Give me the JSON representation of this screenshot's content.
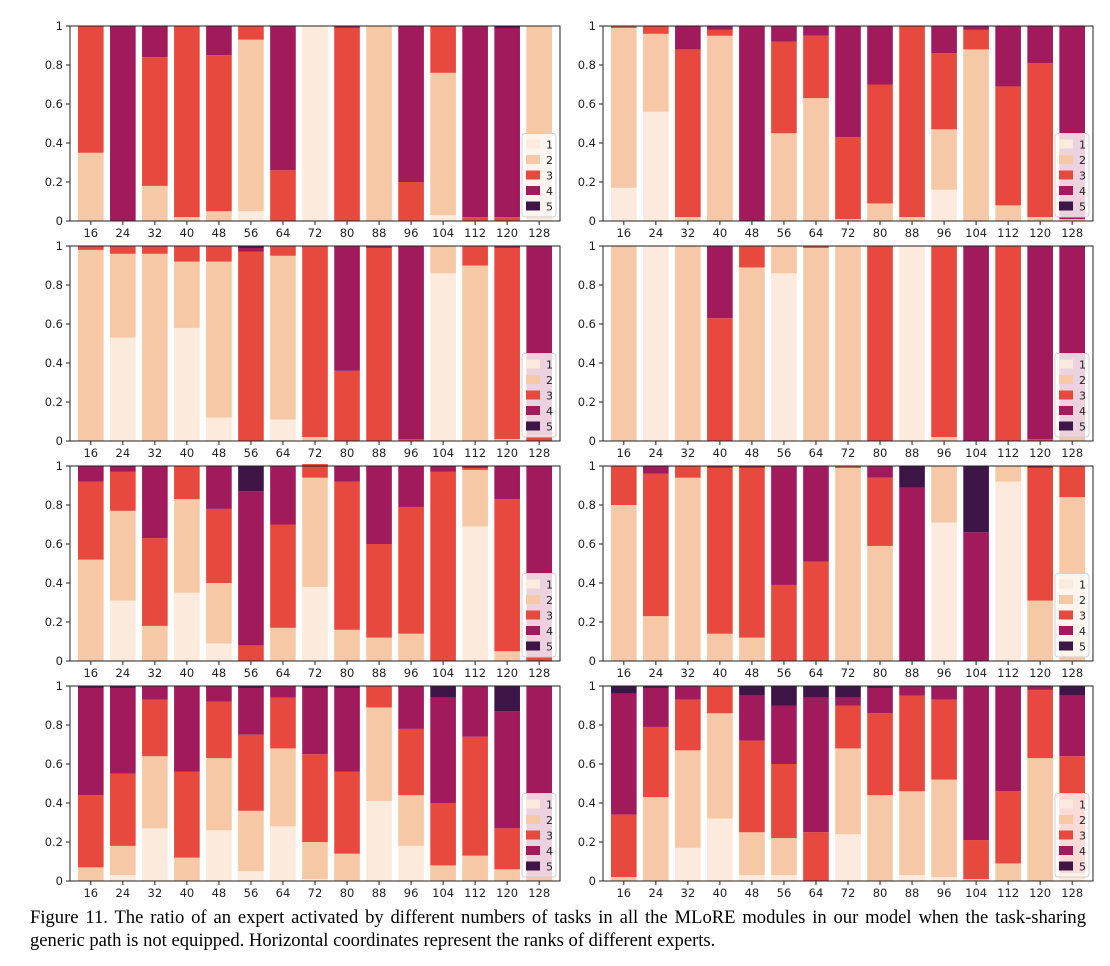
{
  "caption": "Figure 11. The ratio of an expert activated by different numbers of tasks in all the MLoRE modules in our model when the task-sharing generic path is not equipped. Horizontal coordinates represent the ranks of different experts.",
  "colors": {
    "1": "#fcebdc",
    "2": "#f6c8a6",
    "3": "#e8493e",
    "4": "#a11a5b",
    "5": "#3e1547"
  },
  "chart_data": [
    {
      "type": "bar",
      "stacked": true,
      "categories": [
        "16",
        "24",
        "32",
        "40",
        "48",
        "56",
        "64",
        "72",
        "80",
        "88",
        "96",
        "104",
        "112",
        "120",
        "128"
      ],
      "ylim": [
        0,
        1
      ],
      "yticks": [
        "0",
        "0.2",
        "0.4",
        "0.6",
        "0.8",
        "1"
      ],
      "legend": [
        "1",
        "2",
        "3",
        "4",
        "5"
      ],
      "legend_position": "lower-right",
      "series": [
        {
          "name": "1",
          "values": [
            0,
            0,
            0,
            0,
            0,
            0.05,
            0,
            1.0,
            0,
            0,
            0,
            0.03,
            0,
            0,
            0.02
          ]
        },
        {
          "name": "2",
          "values": [
            0.35,
            0,
            0.18,
            0.02,
            0.05,
            0.88,
            0,
            0,
            0,
            1.0,
            0,
            0.73,
            0,
            0,
            0.98
          ]
        },
        {
          "name": "3",
          "values": [
            0.65,
            0,
            0.66,
            0.98,
            0.8,
            0.07,
            0.26,
            0,
            0.99,
            0,
            0.2,
            0.24,
            0.02,
            0.02,
            0
          ]
        },
        {
          "name": "4",
          "values": [
            0,
            1.0,
            0.16,
            0,
            0.15,
            0,
            0.74,
            0,
            0.01,
            0,
            0.8,
            0,
            0.98,
            0.97,
            0
          ]
        },
        {
          "name": "5",
          "values": [
            0,
            0,
            0,
            0,
            0,
            0,
            0,
            0,
            0,
            0,
            0,
            0,
            0,
            0.01,
            0
          ]
        }
      ]
    },
    {
      "type": "bar",
      "stacked": true,
      "categories": [
        "16",
        "24",
        "32",
        "40",
        "48",
        "56",
        "64",
        "72",
        "80",
        "88",
        "96",
        "104",
        "112",
        "120",
        "128"
      ],
      "ylim": [
        0,
        1
      ],
      "yticks": [
        "0",
        "0.2",
        "0.4",
        "0.6",
        "0.8",
        "1"
      ],
      "legend": [
        "1",
        "2",
        "3",
        "4",
        "5"
      ],
      "legend_position": "lower-right",
      "series": [
        {
          "name": "1",
          "values": [
            0.17,
            0.56,
            0,
            0,
            0,
            0,
            0,
            0,
            0,
            0,
            0.16,
            0,
            0,
            0,
            0
          ]
        },
        {
          "name": "2",
          "values": [
            0.82,
            0.4,
            0.02,
            0.95,
            0,
            0.45,
            0.63,
            0.01,
            0.09,
            0.02,
            0.31,
            0.88,
            0.08,
            0.02,
            0.01
          ]
        },
        {
          "name": "3",
          "values": [
            0.01,
            0.04,
            0.86,
            0.03,
            0,
            0.47,
            0.32,
            0.42,
            0.61,
            0.98,
            0.39,
            0.1,
            0.61,
            0.79,
            0
          ]
        },
        {
          "name": "4",
          "values": [
            0,
            0,
            0.12,
            0.02,
            1.0,
            0.08,
            0.05,
            0.57,
            0.3,
            0,
            0.14,
            0.02,
            0.31,
            0.19,
            0.99
          ]
        },
        {
          "name": "5",
          "values": [
            0,
            0,
            0,
            0,
            0,
            0,
            0,
            0,
            0,
            0,
            0,
            0,
            0,
            0,
            0
          ]
        }
      ]
    },
    {
      "type": "bar",
      "stacked": true,
      "categories": [
        "16",
        "24",
        "32",
        "40",
        "48",
        "56",
        "64",
        "72",
        "80",
        "88",
        "96",
        "104",
        "112",
        "120",
        "128"
      ],
      "ylim": [
        0,
        1
      ],
      "yticks": [
        "0",
        "0.2",
        "0.4",
        "0.6",
        "0.8",
        "1"
      ],
      "legend": [
        "1",
        "2",
        "3",
        "4",
        "5"
      ],
      "legend_position": "lower-right",
      "series": [
        {
          "name": "1",
          "values": [
            0,
            0.53,
            0,
            0.58,
            0.12,
            0,
            0.11,
            0,
            0,
            0,
            0,
            0.86,
            0,
            0,
            0
          ]
        },
        {
          "name": "2",
          "values": [
            0.98,
            0.43,
            0.96,
            0.34,
            0.8,
            0,
            0.84,
            0.02,
            0,
            0,
            0,
            0.14,
            0.9,
            0.01,
            0
          ]
        },
        {
          "name": "3",
          "values": [
            0.02,
            0.04,
            0.04,
            0.08,
            0.08,
            0.97,
            0.05,
            0.98,
            0.36,
            0.99,
            0.01,
            0,
            0.1,
            0.98,
            0.03
          ]
        },
        {
          "name": "4",
          "values": [
            0,
            0,
            0,
            0,
            0,
            0.02,
            0,
            0,
            0.64,
            0.01,
            0.99,
            0,
            0,
            0.01,
            0.97
          ]
        },
        {
          "name": "5",
          "values": [
            0,
            0,
            0,
            0,
            0,
            0.01,
            0,
            0,
            0,
            0,
            0,
            0,
            0,
            0,
            0
          ]
        }
      ]
    },
    {
      "type": "bar",
      "stacked": true,
      "categories": [
        "16",
        "24",
        "32",
        "40",
        "48",
        "56",
        "64",
        "72",
        "80",
        "88",
        "96",
        "104",
        "112",
        "120",
        "128"
      ],
      "ylim": [
        0,
        1
      ],
      "yticks": [
        "0",
        "0.2",
        "0.4",
        "0.6",
        "0.8",
        "1"
      ],
      "legend": [
        "1",
        "2",
        "3",
        "4",
        "5"
      ],
      "legend_position": "lower-right",
      "series": [
        {
          "name": "1",
          "values": [
            0,
            1.0,
            0,
            0,
            0,
            0.86,
            0,
            0,
            0,
            1.0,
            0,
            0,
            0,
            0,
            0
          ]
        },
        {
          "name": "2",
          "values": [
            1.0,
            0,
            1.0,
            0,
            0.89,
            0.14,
            0.99,
            1.0,
            0,
            0,
            0.02,
            0,
            0,
            0,
            0.02
          ]
        },
        {
          "name": "3",
          "values": [
            0,
            0,
            0,
            0.63,
            0.11,
            0,
            0.01,
            0,
            1.0,
            0,
            0.98,
            0,
            1.0,
            0.01,
            0
          ]
        },
        {
          "name": "4",
          "values": [
            0,
            0,
            0,
            0.37,
            0,
            0,
            0,
            0,
            0,
            0,
            0,
            1.0,
            0,
            0.99,
            0.98
          ]
        },
        {
          "name": "5",
          "values": [
            0,
            0,
            0,
            0,
            0,
            0,
            0,
            0,
            0,
            0,
            0,
            0,
            0,
            0,
            0
          ]
        }
      ]
    },
    {
      "type": "bar",
      "stacked": true,
      "categories": [
        "16",
        "24",
        "32",
        "40",
        "48",
        "56",
        "64",
        "72",
        "80",
        "88",
        "96",
        "104",
        "112",
        "120",
        "128"
      ],
      "ylim": [
        0,
        1
      ],
      "yticks": [
        "0",
        "0.2",
        "0.4",
        "0.6",
        "0.8",
        "1"
      ],
      "legend": [
        "1",
        "2",
        "3",
        "4",
        "5"
      ],
      "legend_position": "lower-right",
      "series": [
        {
          "name": "1",
          "values": [
            0,
            0.31,
            0,
            0.35,
            0.09,
            0,
            0,
            0.38,
            0,
            0,
            0,
            0,
            0.69,
            0,
            0
          ]
        },
        {
          "name": "2",
          "values": [
            0.52,
            0.46,
            0.18,
            0.48,
            0.31,
            0,
            0.17,
            0.56,
            0.16,
            0.12,
            0.14,
            0,
            0.29,
            0.05,
            0
          ]
        },
        {
          "name": "3",
          "values": [
            0.4,
            0.2,
            0.45,
            0.17,
            0.38,
            0.08,
            0.53,
            0.07,
            0.76,
            0.48,
            0.65,
            0.97,
            0.01,
            0.78,
            0.02
          ]
        },
        {
          "name": "4",
          "values": [
            0.08,
            0.03,
            0.37,
            0,
            0.22,
            0.79,
            0.3,
            0,
            0.08,
            0.4,
            0.21,
            0.03,
            0.01,
            0.17,
            0.98
          ]
        },
        {
          "name": "5",
          "values": [
            0,
            0,
            0,
            0,
            0,
            0.13,
            0,
            0,
            0,
            0,
            0,
            0,
            0,
            0,
            0
          ]
        }
      ]
    },
    {
      "type": "bar",
      "stacked": true,
      "categories": [
        "16",
        "24",
        "32",
        "40",
        "48",
        "56",
        "64",
        "72",
        "80",
        "88",
        "96",
        "104",
        "112",
        "120",
        "128"
      ],
      "ylim": [
        0,
        1
      ],
      "yticks": [
        "0",
        "0.2",
        "0.4",
        "0.6",
        "0.8",
        "1"
      ],
      "legend": [
        "1",
        "2",
        "3",
        "4",
        "5"
      ],
      "legend_position": "lower-right",
      "series": [
        {
          "name": "1",
          "values": [
            0,
            0,
            0,
            0,
            0,
            0,
            0,
            0,
            0,
            0,
            0.71,
            0,
            0.92,
            0,
            0
          ]
        },
        {
          "name": "2",
          "values": [
            0.8,
            0.23,
            0.94,
            0.14,
            0.12,
            0,
            0,
            0.99,
            0.59,
            0,
            0.29,
            0,
            0.08,
            0.31,
            0.84
          ]
        },
        {
          "name": "3",
          "values": [
            0.2,
            0.73,
            0.06,
            0.85,
            0.87,
            0.39,
            0.51,
            0.01,
            0.35,
            0,
            0,
            0,
            0,
            0.68,
            0.16
          ]
        },
        {
          "name": "4",
          "values": [
            0,
            0.04,
            0,
            0.01,
            0.01,
            0.61,
            0.49,
            0,
            0.06,
            0.89,
            0,
            0.66,
            0,
            0.01,
            0
          ]
        },
        {
          "name": "5",
          "values": [
            0,
            0,
            0,
            0,
            0,
            0,
            0,
            0,
            0,
            0.11,
            0,
            0.34,
            0,
            0,
            0
          ]
        }
      ]
    },
    {
      "type": "bar",
      "stacked": true,
      "categories": [
        "16",
        "24",
        "32",
        "40",
        "48",
        "56",
        "64",
        "72",
        "80",
        "88",
        "96",
        "104",
        "112",
        "120",
        "128"
      ],
      "ylim": [
        0,
        1
      ],
      "yticks": [
        "0",
        "0.2",
        "0.4",
        "0.6",
        "0.8",
        "1"
      ],
      "legend": [
        "1",
        "2",
        "3",
        "4",
        "5"
      ],
      "legend_position": "lower-right",
      "series": [
        {
          "name": "1",
          "values": [
            0,
            0.03,
            0.27,
            0,
            0.26,
            0.05,
            0.28,
            0.01,
            0,
            0.41,
            0.18,
            0,
            0,
            0,
            0
          ]
        },
        {
          "name": "2",
          "values": [
            0.07,
            0.15,
            0.37,
            0.12,
            0.37,
            0.31,
            0.4,
            0.19,
            0.14,
            0.48,
            0.26,
            0.08,
            0.13,
            0.06,
            0.02
          ]
        },
        {
          "name": "3",
          "values": [
            0.37,
            0.37,
            0.29,
            0.44,
            0.29,
            0.39,
            0.26,
            0.45,
            0.42,
            0.11,
            0.34,
            0.32,
            0.61,
            0.21,
            0
          ]
        },
        {
          "name": "4",
          "values": [
            0.55,
            0.44,
            0.07,
            0.44,
            0.08,
            0.24,
            0.06,
            0.34,
            0.43,
            0,
            0.22,
            0.54,
            0.26,
            0.6,
            0.98
          ]
        },
        {
          "name": "5",
          "values": [
            0.01,
            0.01,
            0,
            0,
            0,
            0.01,
            0,
            0.01,
            0.01,
            0,
            0,
            0.06,
            0,
            0.13,
            0
          ]
        }
      ]
    },
    {
      "type": "bar",
      "stacked": true,
      "categories": [
        "16",
        "24",
        "32",
        "40",
        "48",
        "56",
        "64",
        "72",
        "80",
        "88",
        "96",
        "104",
        "112",
        "120",
        "128"
      ],
      "ylim": [
        0,
        1
      ],
      "yticks": [
        "0",
        "0.2",
        "0.4",
        "0.6",
        "0.8",
        "1"
      ],
      "legend": [
        "1",
        "2",
        "3",
        "4",
        "5"
      ],
      "legend_position": "lower-right",
      "series": [
        {
          "name": "1",
          "values": [
            0,
            0,
            0.17,
            0.32,
            0.03,
            0.03,
            0,
            0.24,
            0,
            0.03,
            0.02,
            0,
            0,
            0,
            0.02
          ]
        },
        {
          "name": "2",
          "values": [
            0.02,
            0.43,
            0.5,
            0.54,
            0.22,
            0.19,
            0,
            0.44,
            0.44,
            0.43,
            0.5,
            0.01,
            0.09,
            0.63,
            0.02
          ]
        },
        {
          "name": "3",
          "values": [
            0.32,
            0.36,
            0.26,
            0.14,
            0.47,
            0.38,
            0.25,
            0.22,
            0.42,
            0.49,
            0.41,
            0.2,
            0.37,
            0.35,
            0.6
          ]
        },
        {
          "name": "4",
          "values": [
            0.62,
            0.2,
            0.07,
            0,
            0.23,
            0.3,
            0.69,
            0.04,
            0.13,
            0.05,
            0.07,
            0.79,
            0.54,
            0.02,
            0.31
          ]
        },
        {
          "name": "5",
          "values": [
            0.04,
            0.01,
            0,
            0,
            0.05,
            0.1,
            0.06,
            0.06,
            0.01,
            0,
            0,
            0,
            0,
            0,
            0.05
          ]
        }
      ]
    }
  ]
}
